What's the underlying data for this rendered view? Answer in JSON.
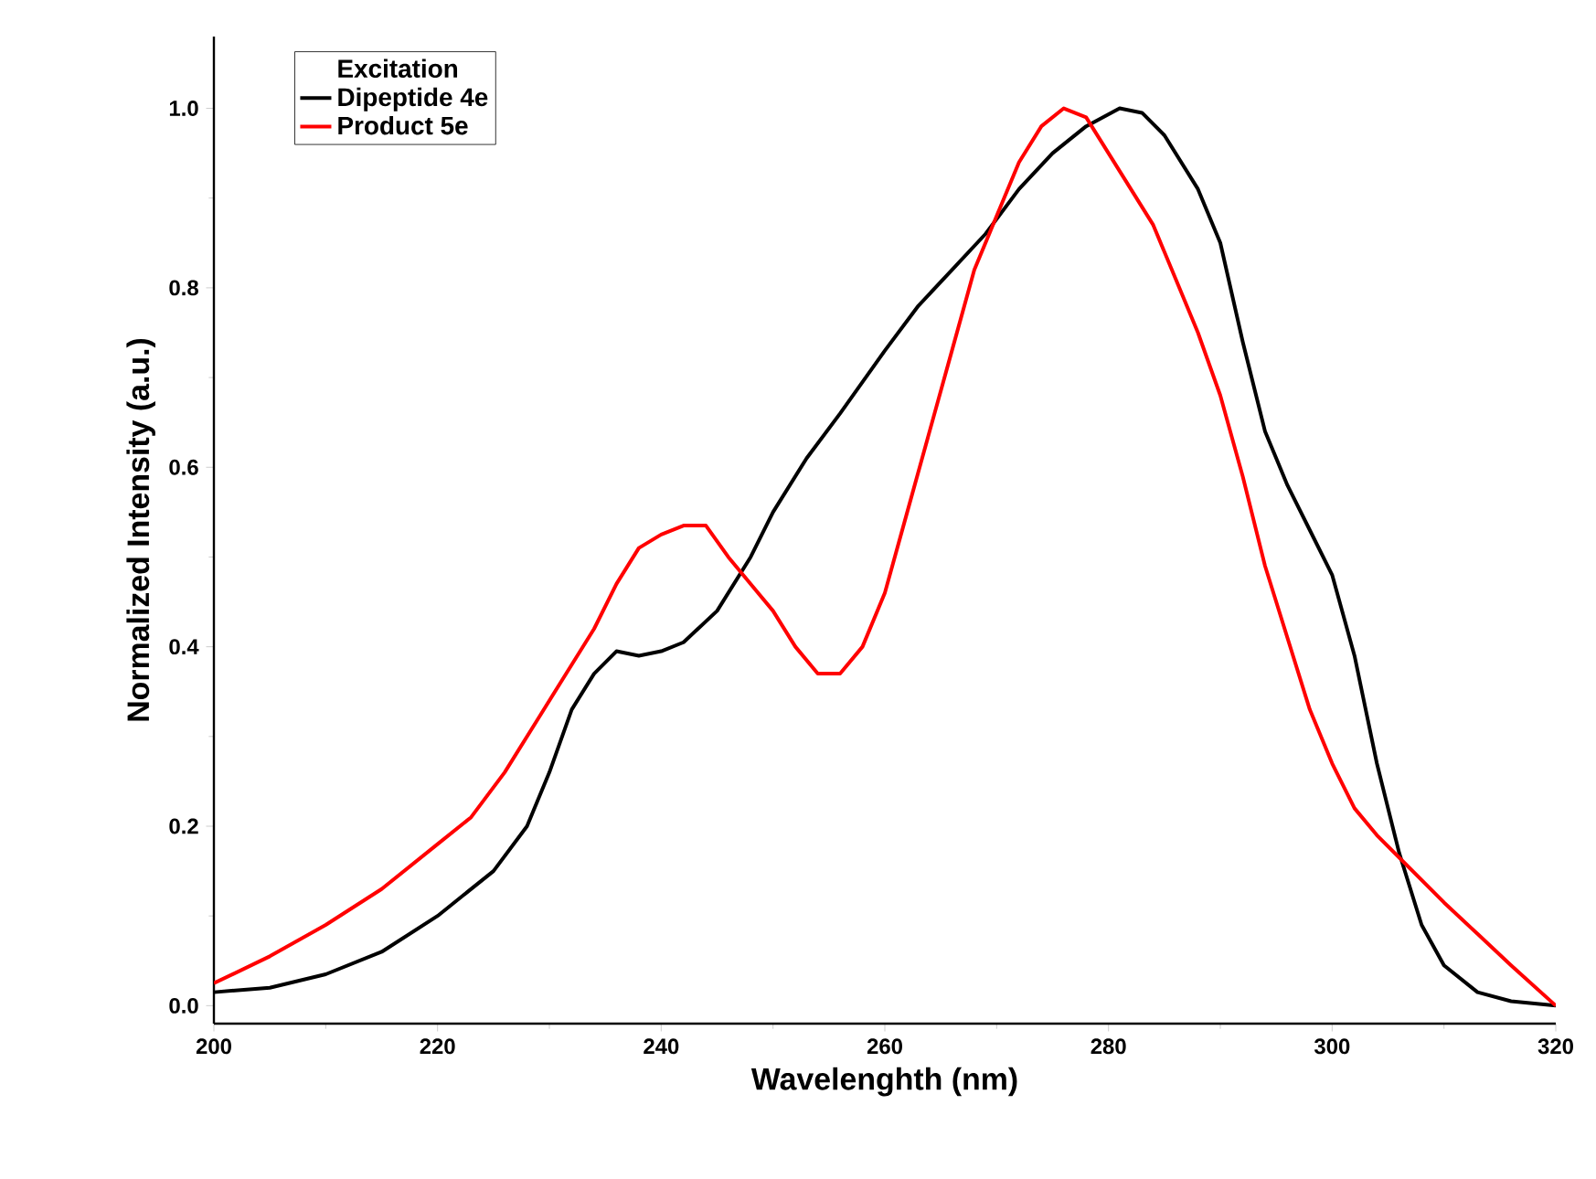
{
  "chart_data": {
    "type": "line",
    "xlabel": "Wavelenghth (nm)",
    "ylabel": "Normalized  Intensity (a.u.)",
    "legend_title": "Excitation",
    "legend": "top left",
    "xlim": [
      200,
      320
    ],
    "xticks": [
      200,
      220,
      240,
      260,
      280,
      300,
      320
    ],
    "ylim": [
      -0.02,
      1.08
    ],
    "yticks": [
      {
        "value": 0,
        "label": "0.0"
      },
      {
        "value": 0.2,
        "label": "0.2"
      },
      {
        "value": 0.4,
        "label": "0.4"
      },
      {
        "value": 0.6,
        "label": "0.6"
      },
      {
        "value": 0.8,
        "label": "0.8"
      },
      {
        "value": 1.0,
        "label": "1.0"
      }
    ],
    "series": [
      {
        "name": "Dipeptide 4e",
        "color": "#000000",
        "x": [
          200,
          205,
          210,
          215,
          220,
          225,
          228,
          230,
          232,
          234,
          236,
          238,
          240,
          242,
          245,
          248,
          250,
          253,
          256,
          260,
          263,
          266,
          269,
          272,
          275,
          278,
          281,
          283,
          285,
          288,
          290,
          292,
          294,
          296,
          298,
          300,
          302,
          304,
          306,
          308,
          310,
          313,
          316,
          320
        ],
        "values": [
          0.015,
          0.02,
          0.035,
          0.06,
          0.1,
          0.15,
          0.2,
          0.26,
          0.33,
          0.37,
          0.395,
          0.39,
          0.395,
          0.405,
          0.44,
          0.5,
          0.55,
          0.61,
          0.66,
          0.73,
          0.78,
          0.82,
          0.86,
          0.91,
          0.95,
          0.98,
          1.0,
          0.995,
          0.97,
          0.91,
          0.85,
          0.74,
          0.64,
          0.58,
          0.53,
          0.48,
          0.39,
          0.27,
          0.17,
          0.09,
          0.045,
          0.015,
          0.005,
          0.0
        ]
      },
      {
        "name": "Product 5e",
        "color": "#ff0000",
        "x": [
          200,
          205,
          210,
          215,
          220,
          223,
          226,
          229,
          232,
          234,
          236,
          238,
          240,
          242,
          244,
          246,
          248,
          250,
          252,
          254,
          256,
          258,
          260,
          262,
          264,
          266,
          268,
          270,
          272,
          274,
          276,
          278,
          280,
          282,
          284,
          286,
          288,
          290,
          292,
          294,
          296,
          298,
          300,
          302,
          304,
          306,
          308,
          310,
          313,
          316,
          320
        ],
        "values": [
          0.025,
          0.055,
          0.09,
          0.13,
          0.18,
          0.21,
          0.26,
          0.32,
          0.38,
          0.42,
          0.47,
          0.51,
          0.525,
          0.535,
          0.535,
          0.5,
          0.47,
          0.44,
          0.4,
          0.37,
          0.37,
          0.4,
          0.46,
          0.55,
          0.64,
          0.73,
          0.82,
          0.88,
          0.94,
          0.98,
          1.0,
          0.99,
          0.95,
          0.91,
          0.87,
          0.81,
          0.75,
          0.68,
          0.59,
          0.49,
          0.41,
          0.33,
          0.27,
          0.22,
          0.19,
          0.165,
          0.14,
          0.115,
          0.08,
          0.045,
          0.0
        ]
      }
    ]
  }
}
